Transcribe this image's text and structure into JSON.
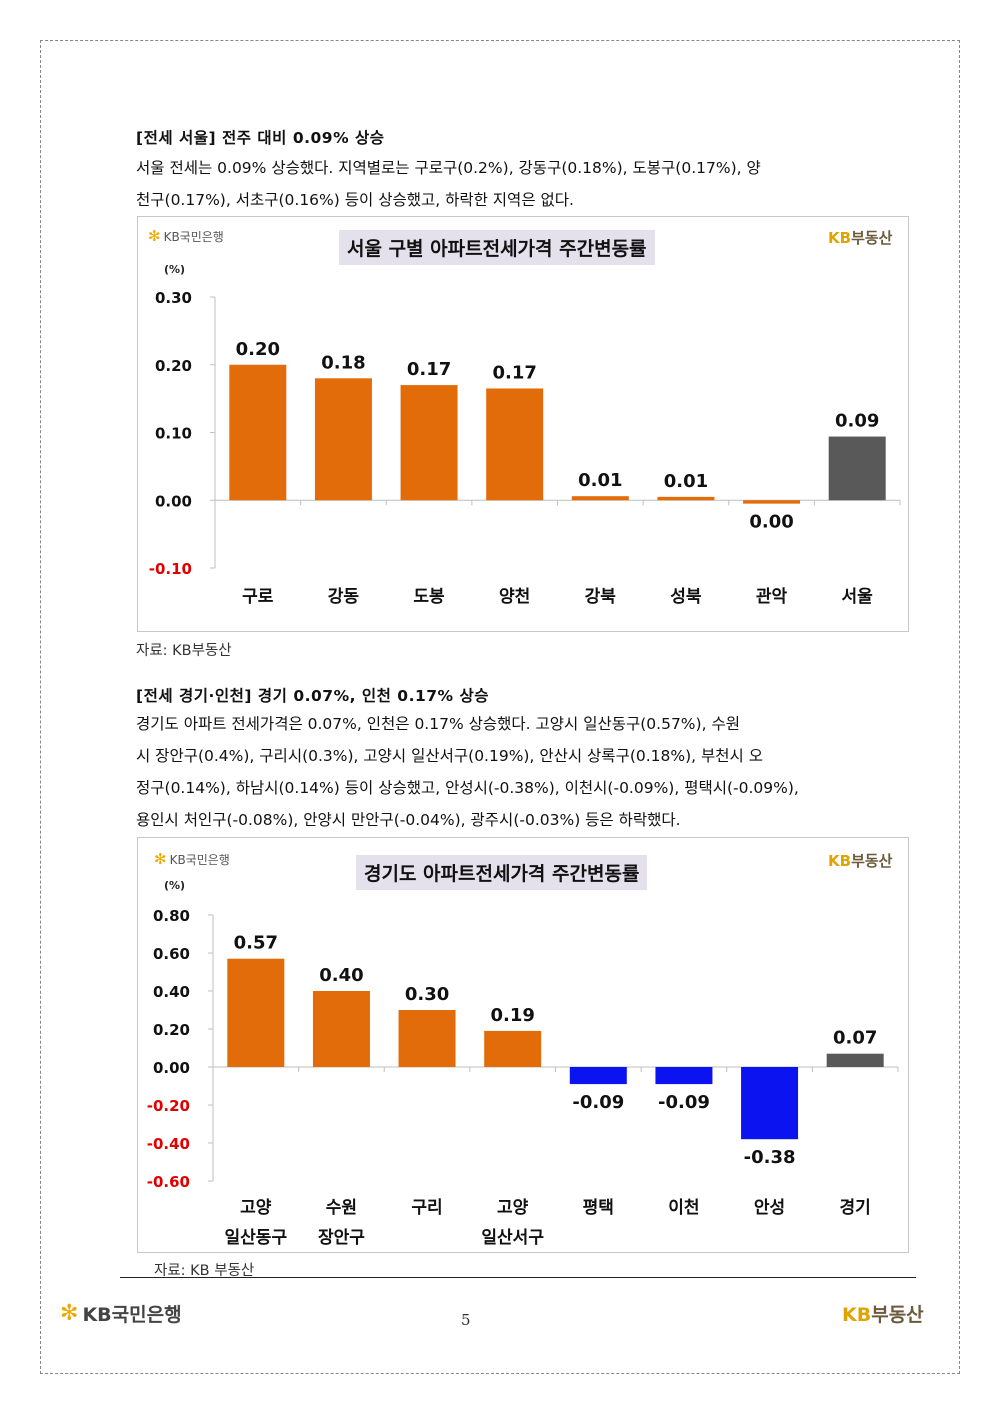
{
  "section1": {
    "heading": "[전세 서울] 전주 대비 0.09% 상승",
    "lines": [
      "서울 전세는 0.09% 상승했다. 지역별로는 구로구(0.2%), 강동구(0.18%), 도봉구(0.17%), 양",
      "천구(0.17%), 서초구(0.16%) 등이 상승했고, 하락한 지역은 없다."
    ],
    "source": "자료: KB부동산"
  },
  "section2": {
    "heading": "[전세 경기·인천] 경기 0.07%, 인천 0.17% 상승",
    "lines": [
      "경기도 아파트 전세가격은 0.07%, 인천은 0.17% 상승했다. 고양시 일산동구(0.57%), 수원",
      "시 장안구(0.4%), 구리시(0.3%), 고양시 일산서구(0.19%), 안산시 상록구(0.18%), 부천시 오",
      "정구(0.14%), 하남시(0.14%) 등이 상승했고, 안성시(-0.38%), 이천시(-0.09%), 평택시(-0.09%),",
      "용인시 처인구(-0.08%), 안양시 만안구(-0.04%), 광주시(-0.03%) 등은 하락했다."
    ],
    "source": "자료: KB 부동산"
  },
  "brand": {
    "kb_bank": "KB국민은행",
    "kb_realestate_kb": "KB",
    "kb_realestate_name": "부동산",
    "star_glyph": "✻"
  },
  "footer": {
    "bank": "KB국민은행",
    "page_number": "5",
    "re_kb": "KB",
    "re_name": "부동산"
  },
  "colors": {
    "orange": "#e36c0a",
    "gray": "#595959",
    "blue": "#0b14f0",
    "negative_tick": "#e00000",
    "title_bg": "#e4e0ec"
  },
  "chart_data": [
    {
      "type": "bar",
      "title": "서울 구별 아파트전세가격 주간변동률",
      "unit_label": "(%)",
      "categories": [
        [
          "구로"
        ],
        [
          "강동"
        ],
        [
          "도봉"
        ],
        [
          "양천"
        ],
        [
          "강북"
        ],
        [
          "성북"
        ],
        [
          "관악"
        ],
        [
          "서울"
        ]
      ],
      "values": [
        0.2,
        0.18,
        0.17,
        0.165,
        0.006,
        0.005,
        -0.005,
        0.094
      ],
      "value_labels": [
        "0.20",
        "0.18",
        "0.17",
        "0.17",
        "0.01",
        "0.01",
        "0.00",
        "0.09"
      ],
      "bar_kinds": [
        "orange",
        "orange",
        "orange",
        "orange",
        "orange",
        "orange",
        "orange",
        "gray"
      ],
      "y_ticks": [
        0.3,
        0.2,
        0.1,
        0.0,
        -0.1
      ],
      "y_tick_labels": [
        "0.30",
        "0.20",
        "0.10",
        "0.00",
        "-0.10"
      ],
      "ylim": [
        -0.1,
        0.3
      ]
    },
    {
      "type": "bar",
      "title": "경기도 아파트전세가격 주간변동률",
      "unit_label": "(%)",
      "categories": [
        [
          "고양",
          "일산동구"
        ],
        [
          "수원",
          "장안구"
        ],
        [
          "구리"
        ],
        [
          "고양",
          "일산서구"
        ],
        [
          "평택"
        ],
        [
          "이천"
        ],
        [
          "안성"
        ],
        [
          "경기"
        ]
      ],
      "values": [
        0.57,
        0.4,
        0.3,
        0.19,
        -0.09,
        -0.09,
        -0.38,
        0.07
      ],
      "value_labels": [
        "0.57",
        "0.40",
        "0.30",
        "0.19",
        "-0.09",
        "-0.09",
        "-0.38",
        "0.07"
      ],
      "bar_kinds": [
        "orange",
        "orange",
        "orange",
        "orange",
        "blue",
        "blue",
        "blue",
        "gray"
      ],
      "y_ticks": [
        0.8,
        0.6,
        0.4,
        0.2,
        0.0,
        -0.2,
        -0.4,
        -0.6
      ],
      "y_tick_labels": [
        "0.80",
        "0.60",
        "0.40",
        "0.20",
        "0.00",
        "-0.20",
        "-0.40",
        "-0.60"
      ],
      "ylim": [
        -0.6,
        0.8
      ]
    }
  ]
}
